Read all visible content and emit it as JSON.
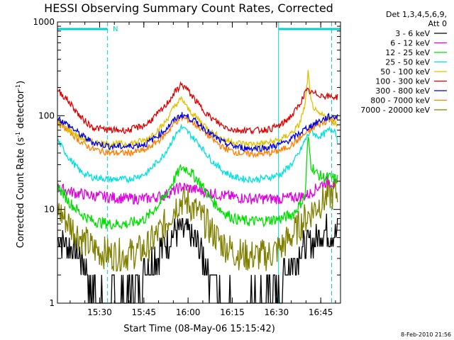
{
  "chart_data": {
    "type": "line",
    "title": "HESSI Observing Summary Count Rates, Corrected",
    "xlabel": "Start Time (08-May-06 15:15:42)",
    "ylabel_main": "Corrected Count Rate (s",
    "ylabel_sup1": "-1",
    "ylabel_mid": " detector",
    "ylabel_sup2": "-1",
    "ylabel_end": ")",
    "y_scale": "log",
    "ylim": [
      1,
      1000
    ],
    "xlim_minutes": [
      0,
      96
    ],
    "x_ticks": [
      {
        "label": "15:30",
        "minute": 14.3
      },
      {
        "label": "15:45",
        "minute": 29.3
      },
      {
        "label": "16:00",
        "minute": 44.3
      },
      {
        "label": "16:15",
        "minute": 59.3
      },
      {
        "label": "16:30",
        "minute": 74.3
      },
      {
        "label": "16:45",
        "minute": 89.3
      }
    ],
    "y_ticks": [
      {
        "label": "1",
        "value": 1
      },
      {
        "label": "10",
        "value": 10
      },
      {
        "label": "100",
        "value": 100
      },
      {
        "label": "1000",
        "value": 1000
      }
    ],
    "legend_header": [
      "Det 1,3,4,5,6,9,",
      "Att 0"
    ],
    "legend_placement": "right",
    "annotations": {
      "night_label": "N",
      "night_bars": [
        [
          0,
          17
        ],
        [
          75,
          96
        ]
      ],
      "dashed_lines": [
        17,
        93
      ],
      "solid_lines": [
        75
      ]
    },
    "series": [
      {
        "name": "3 - 6 keV",
        "color": "#000000",
        "x": [
          0,
          4,
          8,
          10,
          12,
          16,
          20,
          26,
          30,
          34,
          38,
          40,
          44,
          48,
          52,
          56,
          60,
          64,
          68,
          72,
          74,
          76,
          78,
          82,
          84,
          86,
          88,
          90,
          92,
          95
        ],
        "y": [
          5,
          4,
          3,
          2,
          1.4,
          1.1,
          1.2,
          1.5,
          2.5,
          3.5,
          5,
          6,
          5.5,
          4,
          2,
          1.3,
          1,
          1,
          1.1,
          1.5,
          1.2,
          1.5,
          2.5,
          3.5,
          4,
          4.5,
          5,
          6,
          6,
          5.5
        ]
      },
      {
        "name": "6 - 12 keV",
        "color": "#e000e0",
        "x": [
          0,
          6,
          12,
          18,
          24,
          30,
          36,
          40,
          42,
          44,
          48,
          54,
          60,
          66,
          72,
          76,
          80,
          84,
          86,
          88,
          90,
          92,
          95
        ],
        "y": [
          17,
          15,
          14,
          13.5,
          13,
          13,
          14,
          16,
          17.5,
          17,
          16,
          14.5,
          13.5,
          13,
          13,
          13,
          13.5,
          14,
          15,
          17,
          19,
          20,
          18
        ]
      },
      {
        "name": "12 - 25 keV",
        "color": "#00e000",
        "x": [
          0,
          4,
          8,
          12,
          18,
          24,
          30,
          36,
          40,
          42,
          44,
          48,
          52,
          56,
          60,
          64,
          68,
          72,
          76,
          80,
          82,
          84,
          85,
          86,
          88,
          90,
          92,
          95
        ],
        "y": [
          18,
          12,
          9,
          7.5,
          7,
          7,
          8,
          13,
          22,
          28,
          27,
          20,
          13,
          9.5,
          8,
          7.5,
          7.5,
          7.7,
          8,
          9,
          11,
          14,
          60,
          30,
          24,
          22,
          22,
          21
        ]
      },
      {
        "name": "25 - 50 keV",
        "color": "#00e0e0",
        "x": [
          0,
          4,
          8,
          12,
          18,
          24,
          30,
          36,
          40,
          42,
          44,
          48,
          52,
          56,
          60,
          64,
          68,
          72,
          76,
          80,
          82,
          84,
          86,
          88,
          90,
          92,
          94,
          95
        ],
        "y": [
          55,
          35,
          25,
          22,
          21,
          21,
          24,
          38,
          62,
          75,
          68,
          50,
          34,
          26,
          22,
          21,
          21,
          22,
          24,
          32,
          40,
          55,
          70,
          60,
          62,
          70,
          72,
          55
        ]
      },
      {
        "name": "50 - 100 keV",
        "color": "#e0c000",
        "x": [
          0,
          4,
          8,
          12,
          18,
          24,
          30,
          36,
          40,
          42,
          43,
          44,
          48,
          52,
          56,
          60,
          64,
          68,
          72,
          76,
          80,
          82,
          84,
          85,
          86,
          88,
          90,
          92,
          95
        ],
        "y": [
          85,
          70,
          58,
          52,
          50,
          50,
          55,
          80,
          130,
          150,
          140,
          120,
          90,
          68,
          56,
          52,
          50,
          50,
          52,
          56,
          68,
          80,
          130,
          290,
          140,
          105,
          100,
          95,
          80
        ]
      },
      {
        "name": "100 - 300 keV",
        "color": "#e00000",
        "x": [
          0,
          4,
          8,
          12,
          18,
          24,
          30,
          36,
          40,
          42,
          43,
          44,
          48,
          52,
          56,
          60,
          64,
          68,
          72,
          76,
          80,
          82,
          84,
          85,
          86,
          88,
          90,
          92,
          95
        ],
        "y": [
          190,
          140,
          95,
          75,
          70,
          70,
          80,
          120,
          180,
          215,
          205,
          190,
          130,
          95,
          78,
          70,
          70,
          70,
          72,
          80,
          105,
          130,
          175,
          185,
          175,
          170,
          165,
          160,
          158
        ]
      },
      {
        "name": "300 - 800 keV",
        "color": "#0000e0",
        "x": [
          0,
          4,
          8,
          12,
          18,
          24,
          30,
          36,
          40,
          42,
          44,
          48,
          52,
          56,
          60,
          64,
          68,
          72,
          76,
          80,
          84,
          88,
          92,
          95
        ],
        "y": [
          95,
          78,
          62,
          52,
          47,
          47,
          50,
          68,
          92,
          102,
          98,
          82,
          64,
          52,
          47,
          45,
          45,
          46,
          50,
          58,
          72,
          85,
          97,
          98
        ]
      },
      {
        "name": "800 - 7000 keV",
        "color": "#ff8000",
        "x": [
          0,
          4,
          8,
          12,
          18,
          24,
          30,
          36,
          40,
          42,
          44,
          48,
          52,
          56,
          60,
          64,
          68,
          72,
          76,
          80,
          84,
          88,
          92,
          95
        ],
        "y": [
          85,
          68,
          52,
          44,
          40,
          40,
          43,
          60,
          85,
          95,
          92,
          76,
          58,
          46,
          41,
          39,
          39,
          40,
          43,
          50,
          64,
          78,
          90,
          92
        ]
      },
      {
        "name": "7000 - 20000 keV",
        "color": "#808000",
        "x": [
          0,
          4,
          8,
          12,
          18,
          24,
          30,
          36,
          40,
          42,
          44,
          48,
          52,
          56,
          60,
          64,
          68,
          72,
          76,
          80,
          84,
          88,
          92,
          95
        ],
        "y": [
          10,
          7,
          5,
          3.8,
          3.3,
          3.3,
          3.8,
          6.5,
          11,
          12.5,
          12,
          9,
          6,
          4.3,
          3.5,
          3.2,
          3.2,
          3.3,
          4,
          5.5,
          8,
          11,
          14,
          15
        ]
      }
    ]
  },
  "timestamp": "8-Feb-2010 21:56"
}
